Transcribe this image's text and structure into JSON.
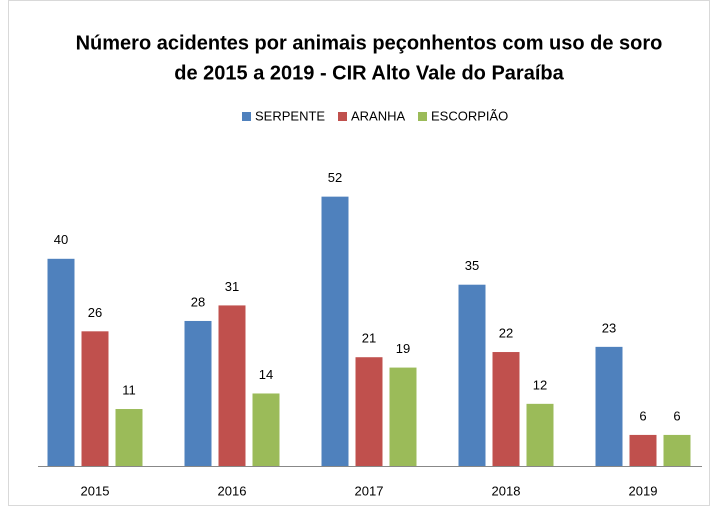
{
  "chart_data": {
    "type": "bar",
    "title": [
      "Número acidentes por animais peçonhentos com uso de soro",
      "de 2015 a 2019 - CIR Alto Vale do Paraíba"
    ],
    "categories": [
      "2015",
      "2016",
      "2017",
      "2018",
      "2019"
    ],
    "series": [
      {
        "name": "SERPENTE",
        "color": "#4f81bd",
        "values": [
          40,
          28,
          52,
          35,
          23
        ]
      },
      {
        "name": "ARANHA",
        "color": "#c0504d",
        "values": [
          26,
          31,
          21,
          22,
          6
        ]
      },
      {
        "name": "ESCORPIÃO",
        "color": "#9bbb59",
        "values": [
          11,
          14,
          19,
          12,
          6
        ]
      }
    ],
    "legend": "top"
  }
}
